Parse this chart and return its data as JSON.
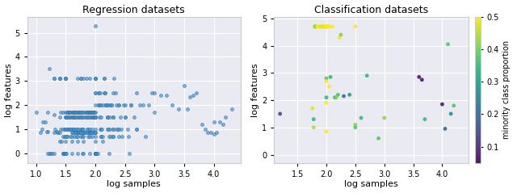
{
  "title_reg": "Regression datasets",
  "title_cls": "Classification datasets",
  "xlabel": "log samples",
  "ylabel": "log features",
  "colorbar_label": "minority class proportion",
  "reg_xlim": [
    0.85,
    4.45
  ],
  "reg_ylim": [
    -0.4,
    5.65
  ],
  "cls_xlim": [
    1.1,
    4.45
  ],
  "cls_ylim": [
    -0.3,
    5.05
  ],
  "colormap": "viridis",
  "cbar_vmin": 0.05,
  "cbar_vmax": 0.5,
  "cbar_ticks": [
    0.1,
    0.2,
    0.3,
    0.4,
    0.5
  ],
  "bg_color": "#f5f5f5",
  "grid_color": "white",
  "reg_color": "#4c96d0",
  "reg_edge_color": "#2a6ea6",
  "reg_scatter": {
    "x": [
      1.0,
      1.08,
      1.1,
      1.11,
      1.15,
      1.18,
      1.2,
      1.2,
      1.2,
      1.23,
      1.23,
      1.25,
      1.26,
      1.3,
      1.3,
      1.3,
      1.3,
      1.3,
      1.32,
      1.35,
      1.36,
      1.38,
      1.4,
      1.4,
      1.4,
      1.4,
      1.4,
      1.4,
      1.41,
      1.41,
      1.43,
      1.45,
      1.45,
      1.45,
      1.45,
      1.46,
      1.47,
      1.48,
      1.48,
      1.48,
      1.5,
      1.5,
      1.5,
      1.5,
      1.5,
      1.5,
      1.5,
      1.5,
      1.5,
      1.5,
      1.5,
      1.5,
      1.51,
      1.51,
      1.51,
      1.52,
      1.52,
      1.53,
      1.53,
      1.53,
      1.54,
      1.54,
      1.55,
      1.55,
      1.55,
      1.56,
      1.56,
      1.57,
      1.57,
      1.58,
      1.58,
      1.58,
      1.58,
      1.6,
      1.6,
      1.6,
      1.6,
      1.6,
      1.6,
      1.6,
      1.61,
      1.62,
      1.62,
      1.62,
      1.63,
      1.63,
      1.63,
      1.64,
      1.64,
      1.65,
      1.65,
      1.65,
      1.65,
      1.66,
      1.66,
      1.66,
      1.67,
      1.67,
      1.68,
      1.68,
      1.68,
      1.69,
      1.7,
      1.7,
      1.7,
      1.7,
      1.7,
      1.7,
      1.7,
      1.7,
      1.71,
      1.71,
      1.72,
      1.72,
      1.72,
      1.72,
      1.73,
      1.73,
      1.74,
      1.74,
      1.74,
      1.75,
      1.75,
      1.75,
      1.75,
      1.75,
      1.75,
      1.76,
      1.76,
      1.76,
      1.77,
      1.78,
      1.78,
      1.78,
      1.78,
      1.78,
      1.78,
      1.79,
      1.79,
      1.8,
      1.8,
      1.8,
      1.8,
      1.8,
      1.8,
      1.8,
      1.8,
      1.82,
      1.82,
      1.83,
      1.84,
      1.84,
      1.85,
      1.85,
      1.85,
      1.86,
      1.86,
      1.86,
      1.87,
      1.87,
      1.88,
      1.88,
      1.88,
      1.88,
      1.89,
      1.89,
      1.9,
      1.9,
      1.9,
      1.9,
      1.9,
      1.9,
      1.9,
      1.91,
      1.91,
      1.91,
      1.92,
      1.92,
      1.93,
      1.93,
      1.94,
      1.94,
      1.94,
      1.95,
      1.95,
      1.95,
      1.95,
      1.96,
      1.97,
      1.98,
      1.98,
      1.98,
      1.99,
      1.99,
      1.99,
      2.0,
      2.0,
      2.0,
      2.0,
      2.0,
      2.0,
      2.0,
      2.0,
      2.0,
      2.0,
      2.0,
      2.0,
      2.0,
      2.0,
      2.0,
      2.0,
      2.0,
      2.0,
      2.0,
      2.0,
      2.0,
      2.0,
      2.0,
      2.0,
      2.0,
      2.0,
      2.0,
      2.0,
      2.0,
      2.01,
      2.02,
      2.02,
      2.04,
      2.05,
      2.05,
      2.05,
      2.06,
      2.07,
      2.08,
      2.08,
      2.08,
      2.1,
      2.1,
      2.1,
      2.1,
      2.1,
      2.11,
      2.12,
      2.13,
      2.14,
      2.15,
      2.15,
      2.15,
      2.16,
      2.17,
      2.18,
      2.18,
      2.2,
      2.2,
      2.2,
      2.2,
      2.2,
      2.2,
      2.22,
      2.23,
      2.23,
      2.24,
      2.25,
      2.25,
      2.26,
      2.27,
      2.28,
      2.3,
      2.3,
      2.3,
      2.3,
      2.3,
      2.3,
      2.3,
      2.32,
      2.34,
      2.35,
      2.36,
      2.38,
      2.4,
      2.4,
      2.4,
      2.4,
      2.42,
      2.44,
      2.45,
      2.48,
      2.5,
      2.5,
      2.5,
      2.55,
      2.56,
      2.57,
      2.6,
      2.6,
      2.65,
      2.7,
      2.7,
      2.7,
      2.75,
      2.8,
      2.85,
      2.9,
      2.95,
      3.0,
      3.0,
      3.1,
      3.2,
      3.3,
      3.4,
      3.5,
      3.55,
      3.6,
      3.65,
      3.7,
      3.8,
      3.85,
      3.9,
      3.95,
      4.0,
      4.0,
      4.05,
      4.1,
      4.15,
      4.2,
      4.3
    ],
    "y": [
      1.7,
      0.85,
      1.0,
      1.3,
      1.3,
      0.9,
      0.9,
      1.7,
      0.0,
      0.0,
      3.5,
      0.0,
      0.0,
      3.1,
      3.1,
      1.6,
      0.85,
      0.0,
      1.0,
      0.9,
      0.85,
      0.85,
      3.1,
      3.1,
      3.1,
      0.85,
      1.5,
      0.48,
      1.7,
      1.0,
      0.48,
      1.7,
      1.0,
      0.7,
      0.0,
      0.0,
      0.0,
      1.0,
      0.7,
      0.0,
      3.1,
      3.1,
      3.1,
      3.1,
      1.7,
      1.5,
      1.5,
      1.0,
      0.7,
      0.48,
      0.0,
      0.0,
      1.5,
      1.0,
      0.0,
      1.5,
      0.7,
      1.7,
      1.5,
      0.7,
      1.7,
      1.0,
      1.7,
      1.5,
      1.0,
      1.7,
      1.0,
      1.7,
      1.5,
      1.7,
      1.5,
      1.0,
      0.7,
      1.7,
      1.5,
      1.0,
      0.85,
      0.7,
      0.48,
      0.0,
      1.0,
      1.7,
      1.5,
      0.85,
      1.7,
      1.5,
      1.0,
      1.7,
      0.85,
      1.7,
      1.5,
      1.0,
      0.7,
      1.7,
      1.5,
      0.85,
      1.7,
      1.0,
      1.7,
      1.5,
      0.85,
      0.7,
      3.1,
      1.7,
      1.5,
      1.0,
      0.85,
      0.7,
      0.48,
      0.0,
      1.7,
      0.85,
      1.7,
      1.5,
      1.0,
      0.85,
      1.7,
      0.85,
      1.7,
      1.5,
      0.85,
      3.1,
      3.1,
      1.7,
      1.5,
      1.0,
      0.7,
      1.7,
      1.5,
      0.85,
      1.0,
      1.7,
      1.5,
      1.0,
      0.85,
      0.7,
      0.0,
      1.7,
      0.85,
      3.1,
      1.7,
      1.5,
      1.0,
      0.85,
      0.7,
      0.48,
      0.0,
      1.5,
      0.85,
      0.85,
      1.7,
      0.85,
      3.1,
      1.7,
      1.5,
      1.7,
      1.5,
      0.85,
      1.7,
      1.0,
      1.7,
      1.5,
      1.0,
      0.7,
      1.7,
      0.85,
      3.1,
      1.7,
      1.5,
      1.0,
      0.85,
      0.7,
      0.0,
      1.7,
      1.5,
      0.85,
      1.7,
      0.85,
      1.7,
      0.85,
      1.7,
      1.5,
      0.85,
      1.7,
      1.5,
      1.0,
      0.7,
      1.5,
      1.7,
      1.7,
      1.5,
      0.85,
      1.7,
      1.5,
      0.85,
      5.3,
      3.1,
      3.1,
      3.1,
      3.1,
      2.5,
      2.5,
      2.0,
      1.7,
      1.5,
      1.0,
      0.85,
      0.7,
      0.48,
      0.0,
      0.0,
      0.0,
      0.0,
      0.0,
      0.0,
      0.0,
      0.0,
      0.0,
      0.0,
      1.5,
      1.5,
      0.85,
      0.0,
      0.0,
      0.0,
      0.0,
      0.0,
      0.0,
      2.0,
      2.5,
      2.0,
      2.5,
      1.5,
      2.5,
      2.0,
      1.0,
      0.7,
      2.0,
      1.5,
      1.0,
      0.7,
      1.0,
      0.7,
      0.48,
      2.0,
      3.1,
      3.1,
      2.5,
      2.5,
      2.5,
      2.0,
      2.0,
      1.5,
      1.0,
      2.0,
      2.0,
      1.5,
      1.5,
      1.0,
      0.7,
      0.0,
      2.0,
      1.5,
      1.0,
      0.7,
      2.0,
      2.0,
      1.5,
      1.0,
      0.7,
      1.5,
      1.0,
      0.7,
      2.5,
      3.1,
      2.5,
      2.0,
      1.0,
      1.0,
      0.7,
      2.0,
      1.0,
      2.0,
      1.5,
      1.0,
      0.7,
      2.0,
      1.5,
      2.0,
      1.5,
      1.0,
      0.7,
      0.0,
      2.0,
      2.0,
      1.5,
      1.0,
      1.0,
      2.5,
      2.0,
      2.0,
      0.7,
      2.0,
      2.5,
      2.5,
      1.7,
      2.4,
      2.4,
      2.0,
      1.85,
      2.8,
      1.85,
      2.35,
      2.4,
      2.5,
      1.2,
      1.0,
      0.85,
      0.85,
      1.3,
      0.8,
      0.85,
      1.3,
      1.2,
      1.5,
      1.85
    ]
  },
  "cls_scatter": {
    "x": [
      1.2,
      1.76,
      1.78,
      1.78,
      1.8,
      1.8,
      1.8,
      1.8,
      1.8,
      1.81,
      1.82,
      1.85,
      1.85,
      1.9,
      1.9,
      1.9,
      1.95,
      1.95,
      1.95,
      1.95,
      1.95,
      2.0,
      2.0,
      2.0,
      2.0,
      2.0,
      2.0,
      2.0,
      2.0,
      2.0,
      2.0,
      2.0,
      2.0,
      2.0,
      2.0,
      2.0,
      2.0,
      2.0,
      2.0,
      2.02,
      2.05,
      2.05,
      2.07,
      2.1,
      2.15,
      2.17,
      2.2,
      2.23,
      2.25,
      2.3,
      2.4,
      2.5,
      2.5,
      2.5,
      2.6,
      2.7,
      2.9,
      3.0,
      3.6,
      3.65,
      3.7,
      4.0,
      4.05,
      4.1,
      4.15,
      4.2
    ],
    "y": [
      1.5,
      1.7,
      1.3,
      1.0,
      4.7,
      4.7,
      4.7,
      4.7,
      4.7,
      4.7,
      4.7,
      4.7,
      4.7,
      4.7,
      4.7,
      4.7,
      4.7,
      4.7,
      4.7,
      4.7,
      4.7,
      4.7,
      4.7,
      4.7,
      4.7,
      4.7,
      4.7,
      4.7,
      4.7,
      4.7,
      4.7,
      4.7,
      4.7,
      4.7,
      2.8,
      2.7,
      2.1,
      1.9,
      0.85,
      4.7,
      4.7,
      2.5,
      2.85,
      4.7,
      2.1,
      2.1,
      2.2,
      4.3,
      4.4,
      2.15,
      2.2,
      1.1,
      1.0,
      4.7,
      1.35,
      2.9,
      0.6,
      1.35,
      2.85,
      2.75,
      1.3,
      1.85,
      0.95,
      4.05,
      1.5,
      1.8
    ],
    "color": [
      0.15,
      0.48,
      0.35,
      0.45,
      0.5,
      0.5,
      0.5,
      0.5,
      0.45,
      0.4,
      0.45,
      0.5,
      0.5,
      0.5,
      0.5,
      0.48,
      0.5,
      0.5,
      0.5,
      0.5,
      0.48,
      0.5,
      0.5,
      0.5,
      0.5,
      0.5,
      0.5,
      0.5,
      0.5,
      0.5,
      0.5,
      0.5,
      0.5,
      0.5,
      0.38,
      0.5,
      0.35,
      0.5,
      0.5,
      0.5,
      0.5,
      0.5,
      0.35,
      0.5,
      0.3,
      0.42,
      0.38,
      0.5,
      0.42,
      0.22,
      0.3,
      0.42,
      0.38,
      0.5,
      0.35,
      0.35,
      0.38,
      0.42,
      0.08,
      0.08,
      0.35,
      0.08,
      0.2,
      0.38,
      0.28,
      0.38
    ]
  }
}
